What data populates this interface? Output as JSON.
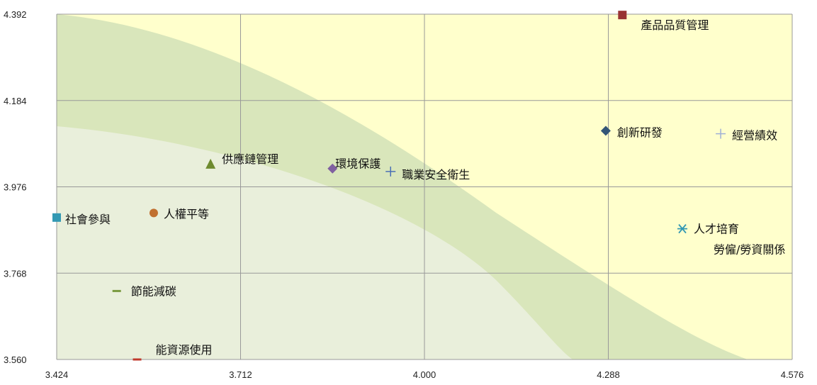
{
  "chart_data": {
    "type": "scatter",
    "xlim": [
      3.424,
      4.576
    ],
    "ylim": [
      3.56,
      4.392
    ],
    "x_ticks": [
      "3.424",
      "3.712",
      "4.000",
      "4.288",
      "4.576"
    ],
    "y_ticks": [
      "4.392",
      "4.184",
      "3.976",
      "3.768",
      "3.560"
    ],
    "grid": true,
    "background_color": "#ffffcc",
    "band_outer_color": "#d9e6bb",
    "band_inner_color": "#e9efdb",
    "points": [
      {
        "label": "產品品質管理",
        "x": 4.31,
        "y": 4.39,
        "marker": "square",
        "color": "#993333"
      },
      {
        "label": "創新研發",
        "x": 4.284,
        "y": 4.111,
        "marker": "diamond",
        "color": "#335577"
      },
      {
        "label": "經營績效",
        "x": 4.464,
        "y": 4.104,
        "marker": "plus",
        "color": "#9fb0d6"
      },
      {
        "label": "供應鏈管理",
        "x": 3.665,
        "y": 4.03,
        "marker": "triangle",
        "color": "#6e8b2f"
      },
      {
        "label": "環境保護",
        "x": 3.856,
        "y": 4.02,
        "marker": "diamond",
        "color": "#8060a0"
      },
      {
        "label": "職業安全衛生",
        "x": 3.947,
        "y": 4.013,
        "marker": "plus",
        "color": "#4a6fb5"
      },
      {
        "label": "社會參與",
        "x": 3.424,
        "y": 3.902,
        "marker": "square",
        "color": "#3399b3"
      },
      {
        "label": "人權平等",
        "x": 3.576,
        "y": 3.913,
        "marker": "circle",
        "color": "#c07030"
      },
      {
        "label": "人才培育",
        "x": 4.404,
        "y": 3.875,
        "marker": "asterisk",
        "color": "#3399b3"
      },
      {
        "label": "勞僱/勞資關係",
        "x": 4.404,
        "y": 3.875,
        "marker": "none",
        "color": "#3399b3"
      },
      {
        "label": "節能減碳",
        "x": 3.518,
        "y": 3.725,
        "marker": "dash",
        "color": "#7a9a40"
      },
      {
        "label": "能資源使用",
        "x": 3.55,
        "y": 3.56,
        "marker": "dash",
        "color": "#c0392b"
      }
    ]
  }
}
